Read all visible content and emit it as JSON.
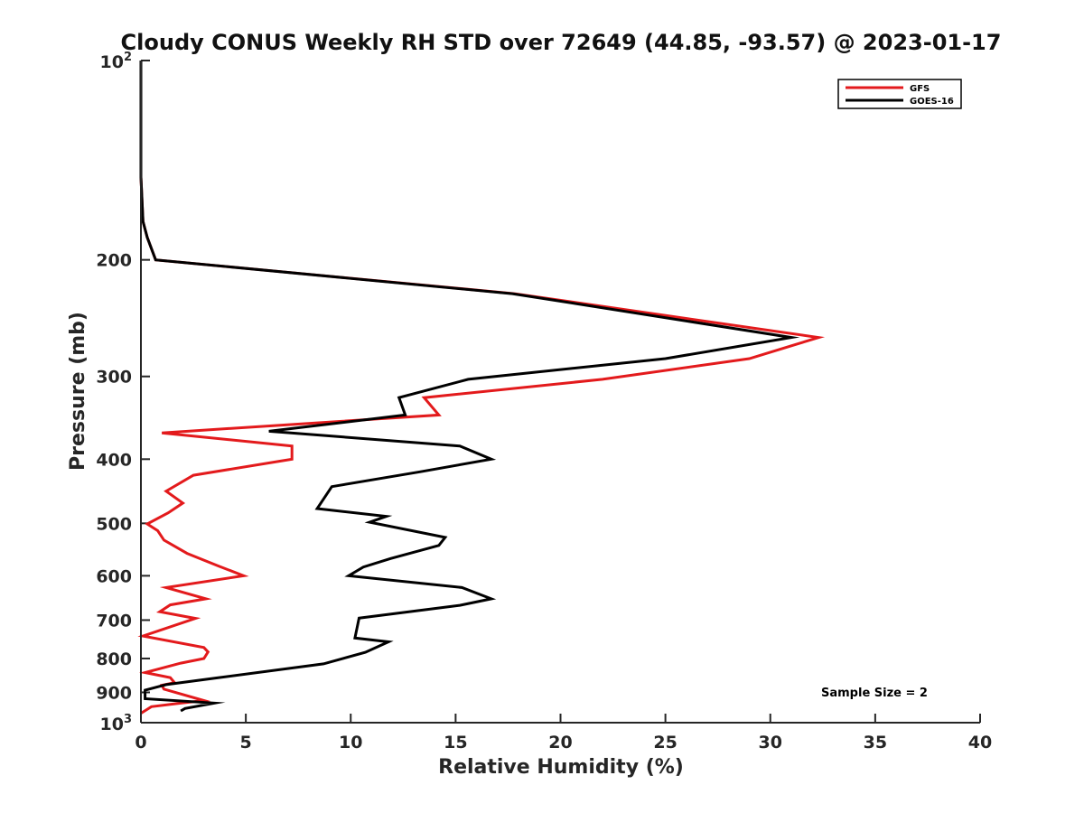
{
  "chart_data": {
    "type": "line",
    "title": "Cloudy CONUS Weekly RH STD over 72649 (44.85, -93.57) @ 2023-01-17",
    "xlabel": "Relative Humidity (%)",
    "ylabel": "Pressure (mb)",
    "xlim": [
      0,
      40
    ],
    "ylim": [
      100,
      1000
    ],
    "y_scale": "log",
    "y_reversed": true,
    "x_ticks": [
      "0",
      "5",
      "10",
      "15",
      "20",
      "25",
      "30",
      "35",
      "40"
    ],
    "y_ticks": [
      {
        "value": 100,
        "base": "10",
        "exp": "2"
      },
      {
        "value": 200,
        "label": "200"
      },
      {
        "value": 300,
        "label": "300"
      },
      {
        "value": 400,
        "label": "400"
      },
      {
        "value": 500,
        "label": "500"
      },
      {
        "value": 600,
        "label": "600"
      },
      {
        "value": 700,
        "label": "700"
      },
      {
        "value": 800,
        "label": "800"
      },
      {
        "value": 900,
        "label": "900"
      },
      {
        "value": 1000,
        "base": "10",
        "exp": "3"
      }
    ],
    "legend_position": "top-right",
    "annotation": "Sample Size = 2",
    "series": [
      {
        "name": "GFS",
        "color": "#e31a1c",
        "points": [
          [
            0,
            100
          ],
          [
            0,
            125
          ],
          [
            0,
            150
          ],
          [
            0.1,
            175
          ],
          [
            0.3,
            185
          ],
          [
            0.7,
            200
          ],
          [
            17.8,
            225
          ],
          [
            32.3,
            262
          ],
          [
            29.0,
            282
          ],
          [
            22.0,
            303
          ],
          [
            13.5,
            323
          ],
          [
            14.2,
            343
          ],
          [
            1.0,
            365
          ],
          [
            7.2,
            382
          ],
          [
            7.2,
            400
          ],
          [
            2.5,
            423
          ],
          [
            1.2,
            447
          ],
          [
            2.0,
            466
          ],
          [
            1.3,
            482
          ],
          [
            0.3,
            501
          ],
          [
            0.8,
            513
          ],
          [
            1.1,
            530
          ],
          [
            2.2,
            555
          ],
          [
            3.7,
            580
          ],
          [
            4.9,
            600
          ],
          [
            1.2,
            625
          ],
          [
            3.1,
            650
          ],
          [
            1.4,
            664
          ],
          [
            0.9,
            680
          ],
          [
            2.6,
            696
          ],
          [
            0.1,
            740
          ],
          [
            3.0,
            770
          ],
          [
            3.2,
            782
          ],
          [
            3.0,
            800
          ],
          [
            1.9,
            813
          ],
          [
            0.2,
            840
          ],
          [
            1.4,
            855
          ],
          [
            1.6,
            870
          ],
          [
            1.0,
            878
          ],
          [
            1.1,
            890
          ],
          [
            3.0,
            926
          ],
          [
            1.8,
            935
          ],
          [
            0.5,
            946
          ],
          [
            0,
            968
          ]
        ]
      },
      {
        "name": "GOES-16",
        "color": "#000000",
        "points": [
          [
            0,
            100
          ],
          [
            0,
            125
          ],
          [
            0,
            150
          ],
          [
            0.1,
            175
          ],
          [
            0.3,
            185
          ],
          [
            0.7,
            200
          ],
          [
            17.7,
            225
          ],
          [
            31.0,
            262
          ],
          [
            25.0,
            282
          ],
          [
            15.6,
            303
          ],
          [
            12.3,
            323
          ],
          [
            12.6,
            343
          ],
          [
            6.1,
            363
          ],
          [
            15.2,
            382
          ],
          [
            16.7,
            400
          ],
          [
            13.3,
            418
          ],
          [
            9.1,
            440
          ],
          [
            8.4,
            475
          ],
          [
            11.7,
            488
          ],
          [
            10.9,
            498
          ],
          [
            14.5,
            525
          ],
          [
            14.2,
            540
          ],
          [
            11.9,
            565
          ],
          [
            10.6,
            582
          ],
          [
            9.9,
            600
          ],
          [
            15.3,
            625
          ],
          [
            16.7,
            650
          ],
          [
            15.2,
            665
          ],
          [
            10.4,
            695
          ],
          [
            10.2,
            745
          ],
          [
            11.8,
            755
          ],
          [
            10.7,
            783
          ],
          [
            8.7,
            815
          ],
          [
            3.6,
            856
          ],
          [
            1.2,
            876
          ],
          [
            0.2,
            893
          ],
          [
            0.2,
            920
          ],
          [
            3.5,
            934
          ],
          [
            2.1,
            952
          ],
          [
            1.9,
            960
          ]
        ]
      }
    ]
  }
}
